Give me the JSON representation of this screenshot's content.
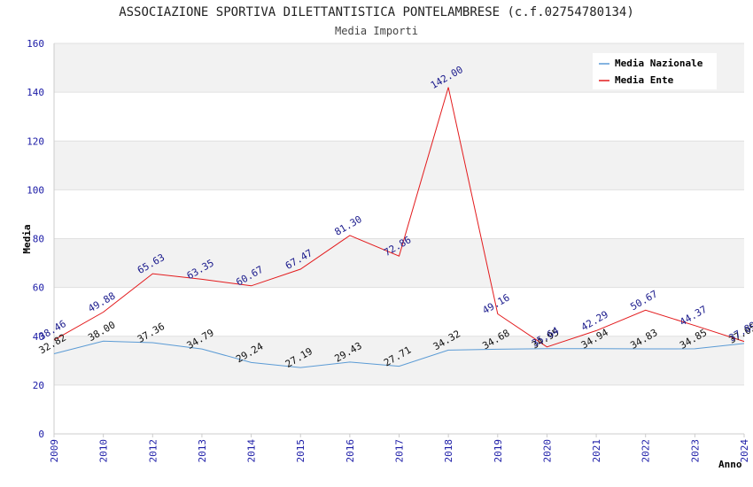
{
  "chart_data": {
    "type": "line",
    "title": "ASSOCIAZIONE SPORTIVA DILETTANTISTICA PONTELAMBRESE (c.f.02754780134)",
    "subtitle": "Media Importi",
    "xlabel": "Anno",
    "ylabel": "Media",
    "ylim": [
      0,
      160
    ],
    "yticks": [
      0,
      20,
      40,
      60,
      80,
      100,
      120,
      140,
      160
    ],
    "categories": [
      "2009",
      "2010",
      "2012",
      "2013",
      "2014",
      "2015",
      "2016",
      "2017",
      "2018",
      "2019",
      "2020",
      "2021",
      "2022",
      "2023",
      "2024"
    ],
    "series": [
      {
        "name": "Media Nazionale",
        "color": "#5b9bd5",
        "values": [
          32.82,
          38.0,
          37.36,
          34.79,
          29.24,
          27.19,
          29.43,
          27.71,
          34.32,
          34.68,
          34.95,
          34.94,
          34.83,
          34.85,
          37.05
        ],
        "labels": [
          "32.82",
          "38.00",
          "37.36",
          "34.79",
          "29.24",
          "27.19",
          "29.43",
          "27.71",
          "34.32",
          "34.68",
          "34.95",
          "34.94",
          "34.83",
          "34.85",
          "37.05"
        ]
      },
      {
        "name": "Media Ente",
        "color": "#e31a1c",
        "values": [
          38.46,
          49.88,
          65.63,
          63.35,
          60.67,
          67.47,
          81.3,
          72.86,
          142.0,
          49.16,
          35.64,
          42.29,
          50.67,
          44.37,
          37.89
        ],
        "labels": [
          "38.46",
          "49.88",
          "65.63",
          "63.35",
          "60.67",
          "67.47",
          "81.30",
          "72.86",
          "142.00",
          "49.16",
          "35.64",
          "42.29",
          "50.67",
          "44.37",
          "37.89"
        ]
      }
    ],
    "legend": "top-right",
    "grid": true
  }
}
